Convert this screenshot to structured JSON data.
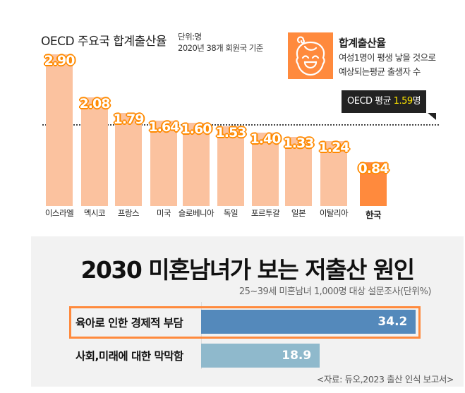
{
  "chart_data": [
    {
      "type": "bar",
      "title": "OECD 주요국 합계출산율",
      "unit_note": "단위:명",
      "subtitle": "2020년 38개 회원국 기준",
      "categories": [
        "이스라엘",
        "멕시코",
        "프랑스",
        "미국",
        "슬로베니아",
        "독일",
        "포르투갈",
        "일본",
        "이탈리아",
        "한국"
      ],
      "values": [
        2.9,
        2.08,
        1.79,
        1.64,
        1.6,
        1.53,
        1.4,
        1.33,
        1.24,
        0.84
      ],
      "value_labels": [
        "2.90",
        "2.08",
        "1.79",
        "1.64",
        "1.60",
        "1.53",
        "1.40",
        "1.33",
        "1.24",
        "0.84"
      ],
      "highlight": "한국",
      "ylim": [
        0,
        3.0
      ],
      "grid": false,
      "reference_line": {
        "value": 1.59,
        "label_prefix": "OECD 평균 ",
        "label_value": "1.59",
        "label_suffix": "명"
      },
      "legend": {
        "title": "합계출산율",
        "lines": [
          "여성1명이 평생 낳을 것으로",
          "예상되는평균 출생자 수"
        ],
        "icon": "baby-face-icon"
      },
      "colors": {
        "bar": "#fbc29f",
        "highlight": "#ff8a3d",
        "avg_value": "#ffe600"
      }
    },
    {
      "type": "bar",
      "orientation": "horizontal",
      "title": "2030 미혼남녀가 보는 저출산 원인",
      "subtitle": "25~39세 미혼남녀 1,000명 대상 설문조사(단위%)",
      "categories": [
        "육아로 인한 경제적 부담",
        "사회,미래에 대한 막막함"
      ],
      "values": [
        34.2,
        18.9
      ],
      "value_labels": [
        "34.2",
        "18.9"
      ],
      "highlight": "육아로 인한 경제적 부담",
      "source": "<자료: 듀오,2023 출산 인식 보고서>",
      "colors": {
        "bars": [
          "#5489bb",
          "#8fb9cc"
        ],
        "highlight_border": "#ff8a3d"
      }
    }
  ]
}
